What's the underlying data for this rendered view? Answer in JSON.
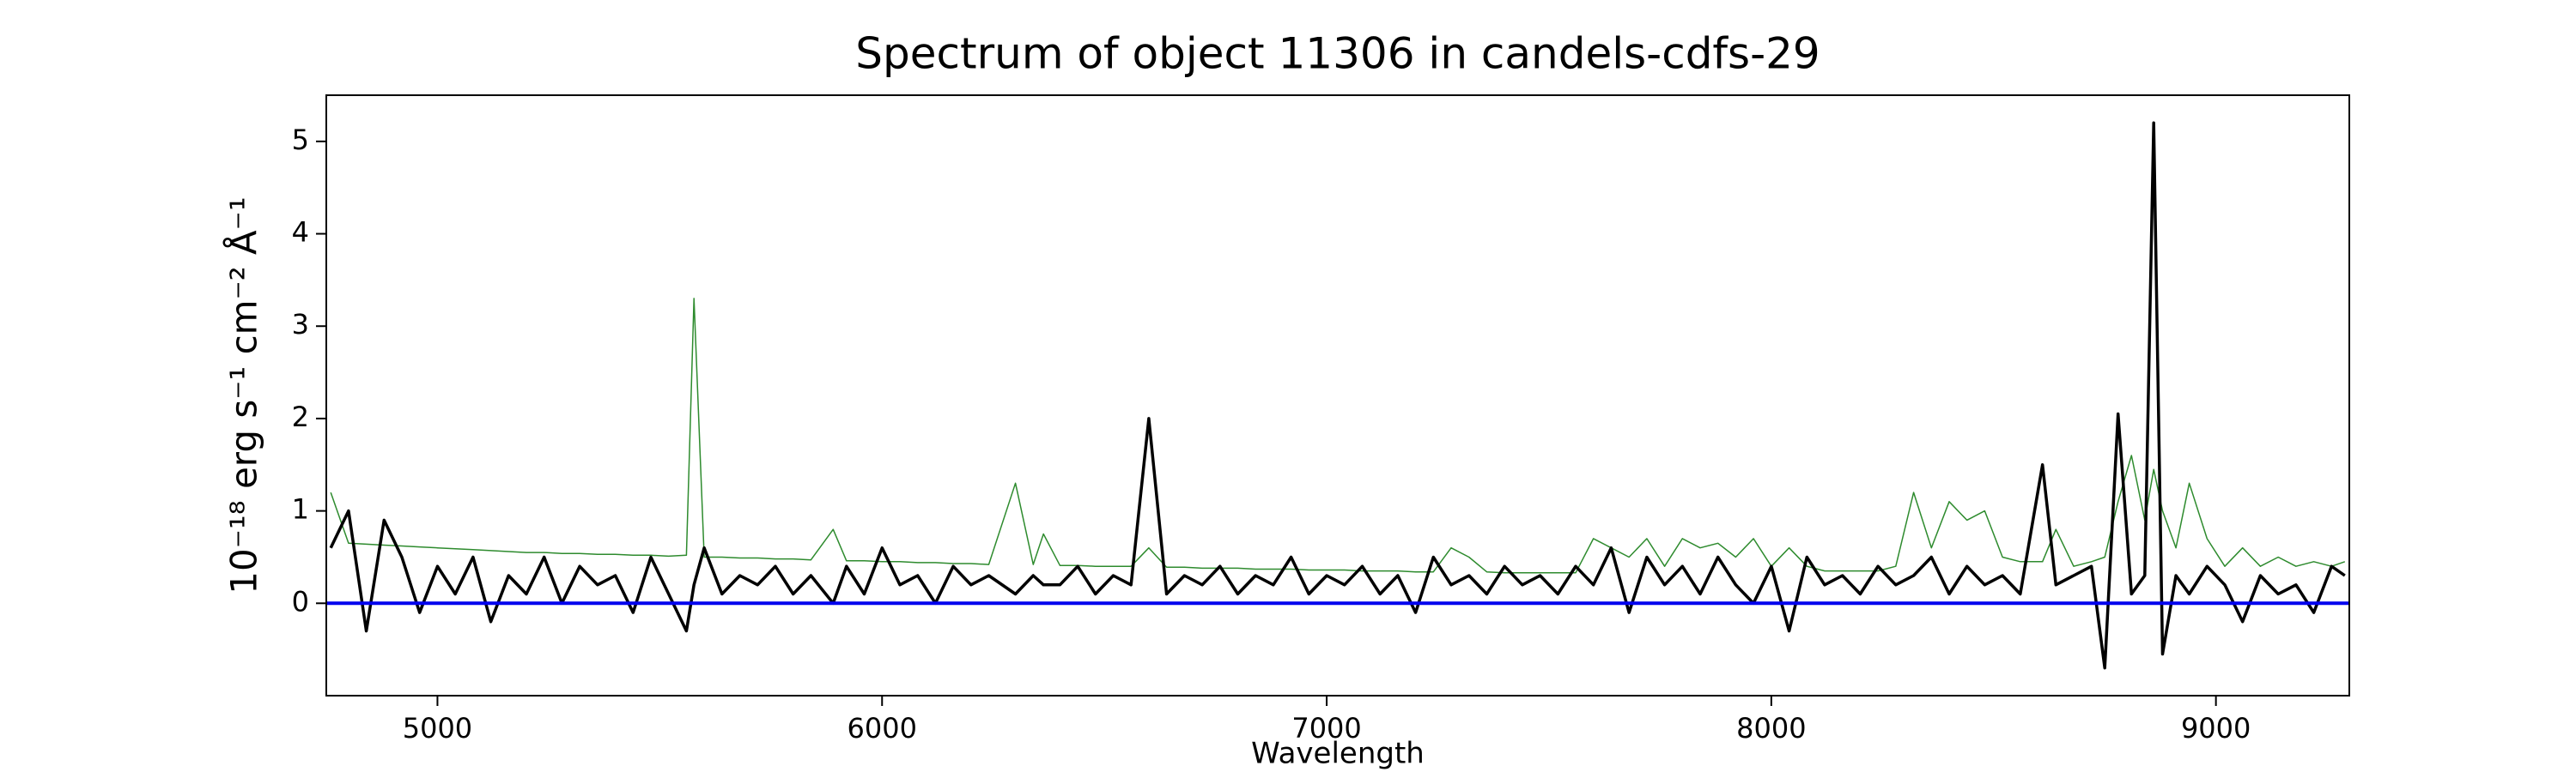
{
  "chart_data": {
    "type": "line",
    "title": "Spectrum of object 11306 in candels-cdfs-29",
    "x_label": "Wavelength",
    "y_label": "10⁻¹⁸ erg s⁻¹ cm⁻² Å⁻¹",
    "xlim": [
      4750,
      9300
    ],
    "ylim": [
      -1,
      5.5
    ],
    "xticks": [
      5000,
      6000,
      7000,
      8000,
      9000
    ],
    "yticks": [
      0,
      1,
      2,
      3,
      4,
      5
    ],
    "x": [
      4760,
      4800,
      4840,
      4880,
      4920,
      4960,
      5000,
      5040,
      5080,
      5120,
      5160,
      5200,
      5240,
      5280,
      5320,
      5360,
      5400,
      5440,
      5480,
      5520,
      5560,
      5577,
      5600,
      5640,
      5680,
      5720,
      5760,
      5800,
      5840,
      5890,
      5920,
      5960,
      6000,
      6040,
      6080,
      6120,
      6160,
      6200,
      6240,
      6300,
      6340,
      6363,
      6400,
      6440,
      6480,
      6520,
      6560,
      6600,
      6640,
      6680,
      6720,
      6760,
      6800,
      6840,
      6880,
      6920,
      6960,
      7000,
      7040,
      7080,
      7120,
      7160,
      7200,
      7240,
      7280,
      7320,
      7360,
      7400,
      7440,
      7480,
      7520,
      7560,
      7600,
      7640,
      7680,
      7720,
      7760,
      7800,
      7840,
      7880,
      7920,
      7960,
      8000,
      8040,
      8080,
      8120,
      8160,
      8200,
      8240,
      8280,
      8320,
      8360,
      8400,
      8440,
      8480,
      8520,
      8560,
      8610,
      8640,
      8680,
      8720,
      8750,
      8780,
      8810,
      8840,
      8860,
      8880,
      8910,
      8940,
      8980,
      9020,
      9060,
      9100,
      9140,
      9180,
      9220,
      9260,
      9290
    ],
    "series": [
      {
        "color": "#2e8b2e",
        "width": 1.5,
        "values": [
          1.2,
          0.65,
          0.64,
          0.63,
          0.62,
          0.61,
          0.6,
          0.59,
          0.58,
          0.57,
          0.56,
          0.55,
          0.55,
          0.54,
          0.54,
          0.53,
          0.53,
          0.52,
          0.52,
          0.51,
          0.52,
          3.3,
          0.5,
          0.5,
          0.49,
          0.49,
          0.48,
          0.48,
          0.47,
          0.8,
          0.46,
          0.46,
          0.45,
          0.45,
          0.44,
          0.44,
          0.43,
          0.43,
          0.42,
          1.3,
          0.42,
          0.75,
          0.41,
          0.41,
          0.4,
          0.4,
          0.4,
          0.6,
          0.39,
          0.39,
          0.38,
          0.38,
          0.38,
          0.37,
          0.37,
          0.37,
          0.36,
          0.36,
          0.36,
          0.35,
          0.35,
          0.35,
          0.34,
          0.34,
          0.6,
          0.5,
          0.34,
          0.33,
          0.33,
          0.33,
          0.33,
          0.33,
          0.7,
          0.6,
          0.5,
          0.7,
          0.4,
          0.7,
          0.6,
          0.65,
          0.5,
          0.7,
          0.4,
          0.6,
          0.4,
          0.35,
          0.35,
          0.35,
          0.35,
          0.4,
          1.2,
          0.6,
          1.1,
          0.9,
          1.0,
          0.5,
          0.45,
          0.45,
          0.8,
          0.4,
          0.45,
          0.5,
          1.1,
          1.6,
          0.9,
          1.45,
          1.0,
          0.6,
          1.3,
          0.7,
          0.4,
          0.6,
          0.4,
          0.5,
          0.4,
          0.45,
          0.4,
          0.45
        ]
      },
      {
        "color": "#000000",
        "width": 3.5,
        "values": [
          0.6,
          1.0,
          -0.3,
          0.9,
          0.5,
          -0.1,
          0.4,
          0.1,
          0.5,
          -0.2,
          0.3,
          0.1,
          0.5,
          0.0,
          0.4,
          0.2,
          0.3,
          -0.1,
          0.5,
          0.1,
          -0.3,
          0.2,
          0.6,
          0.1,
          0.3,
          0.2,
          0.4,
          0.1,
          0.3,
          0.0,
          0.4,
          0.1,
          0.6,
          0.2,
          0.3,
          0.0,
          0.4,
          0.2,
          0.3,
          0.1,
          0.3,
          0.2,
          0.2,
          0.4,
          0.1,
          0.3,
          0.2,
          2.0,
          0.1,
          0.3,
          0.2,
          0.4,
          0.1,
          0.3,
          0.2,
          0.5,
          0.1,
          0.3,
          0.2,
          0.4,
          0.1,
          0.3,
          -0.1,
          0.5,
          0.2,
          0.3,
          0.1,
          0.4,
          0.2,
          0.3,
          0.1,
          0.4,
          0.2,
          0.6,
          -0.1,
          0.5,
          0.2,
          0.4,
          0.1,
          0.5,
          0.2,
          0.0,
          0.4,
          -0.3,
          0.5,
          0.2,
          0.3,
          0.1,
          0.4,
          0.2,
          0.3,
          0.5,
          0.1,
          0.4,
          0.2,
          0.3,
          0.1,
          1.5,
          0.2,
          0.3,
          0.4,
          -0.7,
          2.05,
          0.1,
          0.3,
          5.2,
          -0.55,
          0.3,
          0.1,
          0.4,
          0.2,
          -0.2,
          0.3,
          0.1,
          0.2,
          -0.1,
          0.4,
          0.3
        ]
      },
      {
        "color": "#0000ee",
        "width": 4,
        "x": [
          4750,
          9300
        ],
        "values": [
          0,
          0
        ]
      }
    ]
  }
}
